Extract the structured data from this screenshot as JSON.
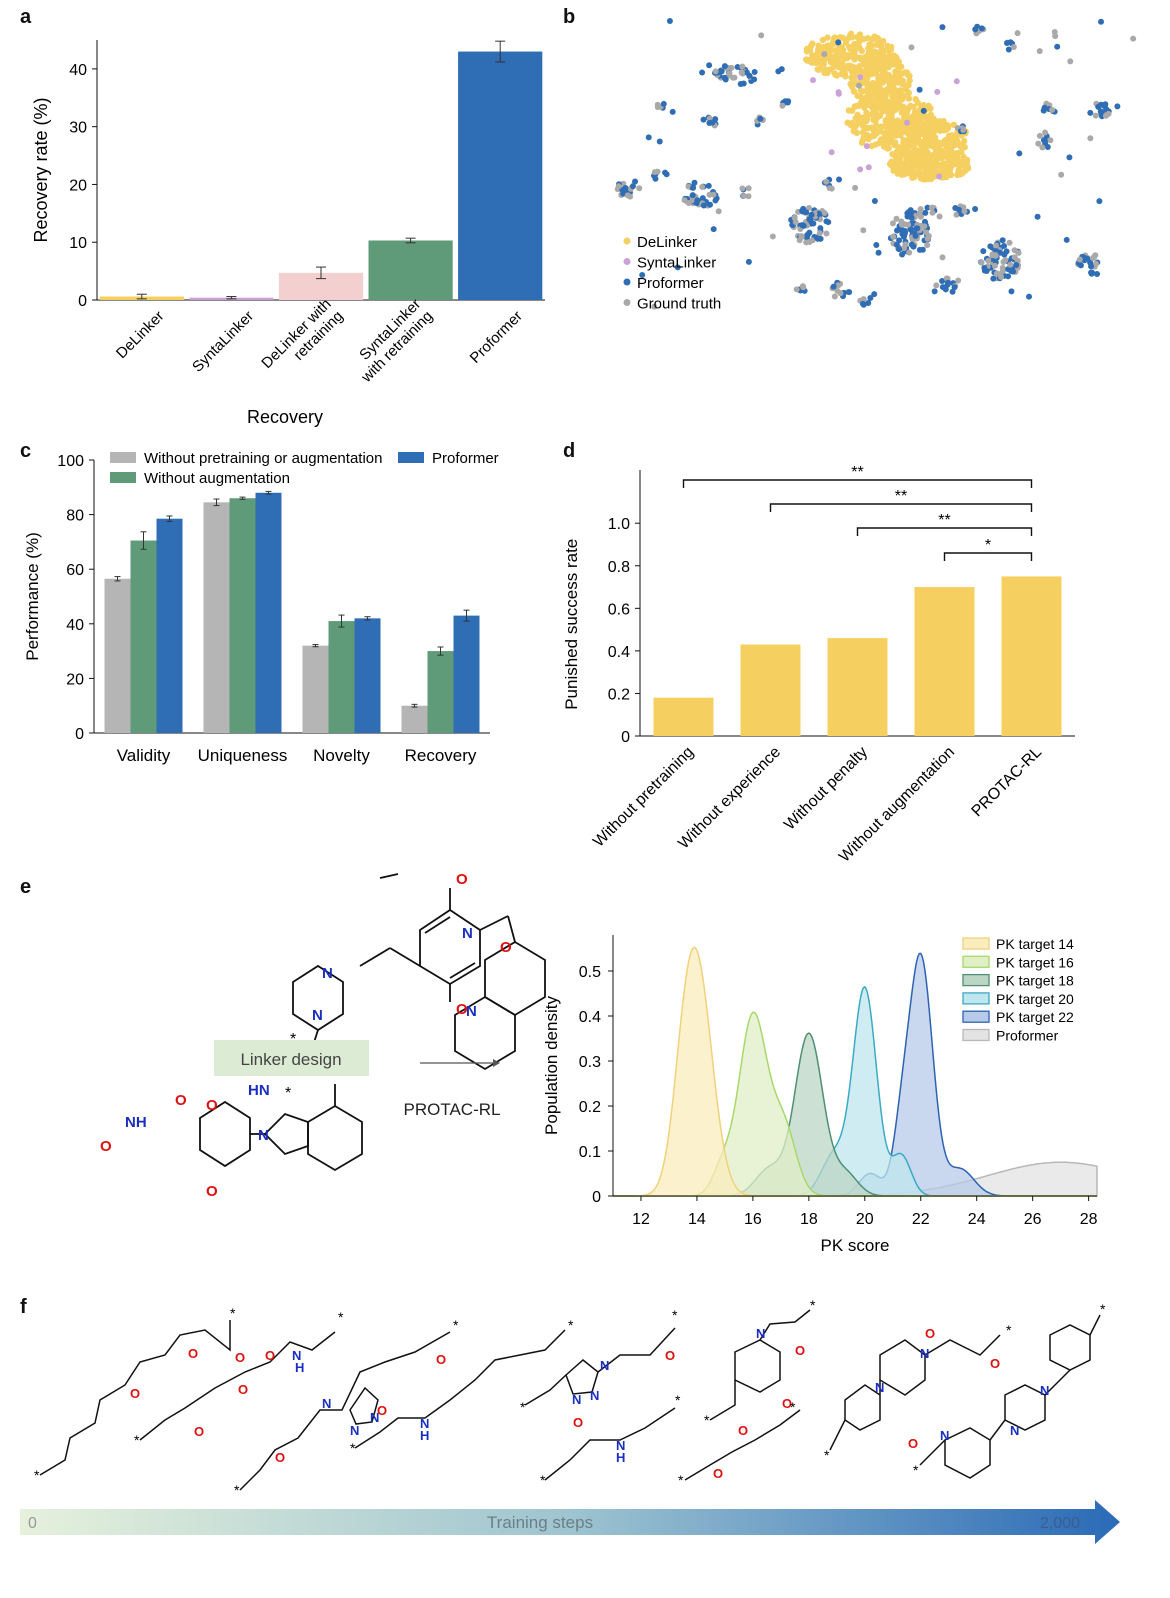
{
  "panel_labels": {
    "a": "a",
    "b": "b",
    "c": "c",
    "d": "d",
    "e": "e",
    "f": "f"
  },
  "colors": {
    "delinker": "#f5d061",
    "syntalinker": "#c9a3d6",
    "delinker_retrain": "#f3cfd0",
    "syntalinker_retrain": "#5f9b78",
    "proformer": "#2f6db5",
    "ground_truth": "#a9a9a9",
    "gray": "#b5b5b5",
    "green": "#5f9b78",
    "blue": "#2f6db5",
    "yellow": "#f5d061"
  },
  "chart_data": [
    {
      "id": "a",
      "type": "bar",
      "title": "",
      "xlabel": "Recovery",
      "ylabel": "Recovery rate (%)",
      "ylim": [
        0,
        45
      ],
      "yticks": [
        0,
        10,
        20,
        30,
        40
      ],
      "categories": [
        "DeLinker",
        "SyntaLinker",
        "DeLinker with\nretraining",
        "SyntaLinker\nwith retraining",
        "Proformer"
      ],
      "values": [
        0.6,
        0.4,
        4.7,
        10.3,
        43.0
      ],
      "errors": [
        0.4,
        0.2,
        1.0,
        0.4,
        1.8
      ],
      "bar_colors": [
        "#f5d061",
        "#c9a3d6",
        "#f3cfd0",
        "#5f9b78",
        "#2f6db5"
      ]
    },
    {
      "id": "b",
      "type": "scatter",
      "title": "",
      "xlabel": "",
      "ylabel": "",
      "legend": [
        "DeLinker",
        "SyntaLinker",
        "Proformer",
        "Ground truth"
      ],
      "legend_colors": [
        "#f5d061",
        "#c9a3d6",
        "#2f6db5",
        "#a9a9a9"
      ]
    },
    {
      "id": "c",
      "type": "bar",
      "title": "",
      "xlabel": "",
      "ylabel": "Performance (%)",
      "ylim": [
        0,
        100
      ],
      "yticks": [
        0,
        20,
        40,
        60,
        80,
        100
      ],
      "categories": [
        "Validity",
        "Uniqueness",
        "Novelty",
        "Recovery"
      ],
      "series": [
        {
          "name": "Without pretraining or augmentation",
          "color": "#b5b5b5",
          "values": [
            56.5,
            84.5,
            32,
            10
          ],
          "errors": [
            0.8,
            1.2,
            0.4,
            0.5
          ]
        },
        {
          "name": "Without augmentation",
          "color": "#5f9b78",
          "values": [
            70.5,
            86,
            41,
            30
          ],
          "errors": [
            3.2,
            0.4,
            2.2,
            1.5
          ]
        },
        {
          "name": "Proformer",
          "color": "#2f6db5",
          "values": [
            78.5,
            88,
            42,
            43
          ],
          "errors": [
            1.0,
            0.5,
            0.6,
            2.0
          ]
        }
      ]
    },
    {
      "id": "d",
      "type": "bar",
      "title": "",
      "xlabel": "",
      "ylabel": "Punished success rate",
      "ylim": [
        0,
        1.25
      ],
      "yticks": [
        "0",
        "0.2",
        "0.4",
        "0.6",
        "0.8",
        "1.0"
      ],
      "categories": [
        "Without pretraining",
        "Without experience",
        "Without penalty",
        "Without augmentation",
        "PROTAC-RL"
      ],
      "values": [
        0.18,
        0.43,
        0.46,
        0.7,
        0.75
      ],
      "significance": [
        {
          "from": 0,
          "to": 4,
          "label": "**"
        },
        {
          "from": 1,
          "to": 4,
          "label": "**"
        },
        {
          "from": 2,
          "to": 4,
          "label": "**"
        },
        {
          "from": 3,
          "to": 4,
          "label": "*"
        }
      ]
    },
    {
      "id": "e",
      "type": "area",
      "title": "",
      "xlabel": "PK score",
      "ylabel": "Population density",
      "xlim": [
        11,
        28.3
      ],
      "ylim": [
        0,
        0.58
      ],
      "xticks": [
        12,
        14,
        16,
        18,
        20,
        22,
        24,
        26,
        28
      ],
      "yticks": [
        "0",
        "0.1",
        "0.2",
        "0.3",
        "0.4",
        "0.5"
      ],
      "series": [
        {
          "name": "PK target 14",
          "color": "#f0d27a",
          "fill": "#faecbc",
          "peaks": [
            [
              14,
              0.5,
              0.55
            ],
            [
              13.5,
              0.1,
              0.4
            ]
          ]
        },
        {
          "name": "PK target 16",
          "color": "#a9d86a",
          "fill": "#dfefc6",
          "peaks": [
            [
              16,
              0.4,
              0.5
            ],
            [
              17.1,
              0.15,
              0.45
            ],
            [
              14.9,
              0.06,
              0.35
            ]
          ]
        },
        {
          "name": "PK target 18",
          "color": "#4f8f73",
          "fill": "#bcd6c6",
          "peaks": [
            [
              18,
              0.36,
              0.5
            ],
            [
              16.6,
              0.06,
              0.5
            ],
            [
              19.3,
              0.05,
              0.45
            ]
          ]
        },
        {
          "name": "PK target 20",
          "color": "#3aaac4",
          "fill": "#bfe5ee",
          "peaks": [
            [
              20,
              0.46,
              0.42
            ],
            [
              18.9,
              0.09,
              0.45
            ],
            [
              21.3,
              0.09,
              0.35
            ]
          ]
        },
        {
          "name": "PK target 22",
          "color": "#2e63b1",
          "fill": "#b7caea",
          "peaks": [
            [
              22,
              0.53,
              0.42
            ],
            [
              21.3,
              0.12,
              0.3
            ],
            [
              23.4,
              0.06,
              0.5
            ],
            [
              20.2,
              0.05,
              0.4
            ]
          ]
        },
        {
          "name": "Proformer",
          "color": "#b8b8b8",
          "fill": "#e3e3e3",
          "peaks": [
            [
              27,
              0.075,
              2.6
            ]
          ]
        }
      ]
    }
  ],
  "panel_e_diagram": {
    "linker_design": "Linker design",
    "method": "PROTAC-RL",
    "atoms": {
      "O": "O",
      "N": "N",
      "HN": "HN",
      "NH": "NH",
      "star": "*"
    }
  },
  "panel_f": {
    "bar_start": "0",
    "bar_label": "Training steps",
    "bar_end": "2,000",
    "atoms": {
      "O": "O",
      "N": "N",
      "H": "H",
      "star": "*"
    }
  }
}
